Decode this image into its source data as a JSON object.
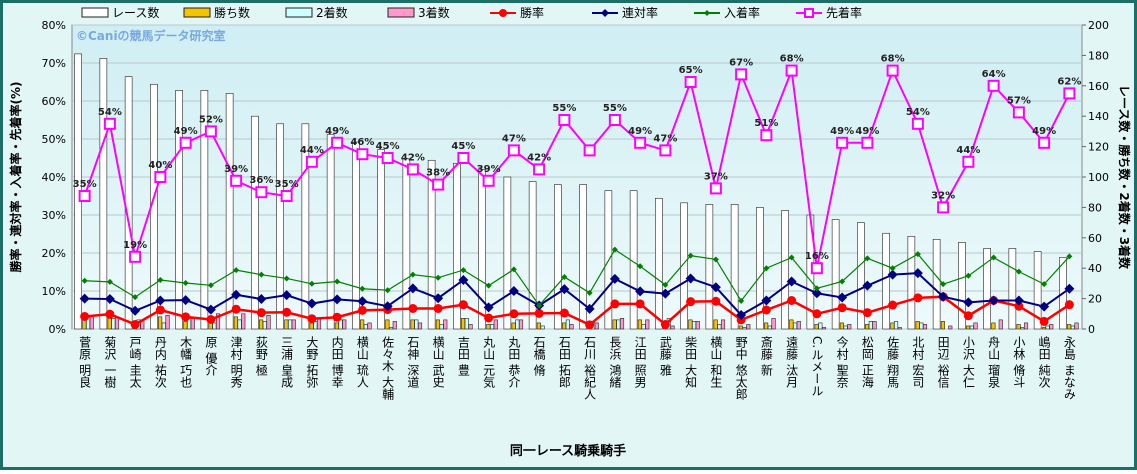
{
  "chart_data": {
    "type": "bar",
    "watermark": "©Caniの競馬データ研究室",
    "xlabel": "同一レース騎乗騎手",
    "ylabel": "勝率・連対率・入着率・先着率(%)",
    "y2label": "レース数・勝ち数・2着数・3着数",
    "grid": true,
    "legend": "top",
    "categories": [
      "菅原 明良",
      "菊沢 一樹",
      "戸崎 圭太",
      "丹内 祐次",
      "木幡 巧也",
      "原 優介",
      "津村 明秀",
      "荻野 極",
      "三浦 皇成",
      "大野 拓弥",
      "内田 博幸",
      "横山 琉人",
      "佐々木 大輔",
      "石神 深道",
      "横山 武史",
      "吉田 豊",
      "丸山 元気",
      "丸田 恭介",
      "石橋 脩",
      "石田 拓郎",
      "石川 裕紀人",
      "長浜 鴻緒",
      "江田 照男",
      "武藤 雅",
      "柴田 大知",
      "横山 和生",
      "野中 悠太郎",
      "斎藤 新",
      "遠藤 汰月",
      "C.ルメール",
      "今村 聖奈",
      "松岡 正海",
      "佐藤 翔馬",
      "北村 宏司",
      "田辺 裕信",
      "小沢 大仁",
      "舟山 瑠泉",
      "小林 脩斗",
      "嶋田 純次",
      "永島 まなみ"
    ],
    "ylim": [
      0,
      80
    ],
    "yticks": [
      {
        "value": 0,
        "label": "0%"
      },
      {
        "value": 10,
        "label": "10%"
      },
      {
        "value": 20,
        "label": "20%"
      },
      {
        "value": 30,
        "label": "30%"
      },
      {
        "value": 40,
        "label": "40%"
      },
      {
        "value": 50,
        "label": "50%"
      },
      {
        "value": 60,
        "label": "60%"
      },
      {
        "value": 70,
        "label": "70%"
      },
      {
        "value": 80,
        "label": "80%"
      }
    ],
    "y2lim": [
      0,
      200
    ],
    "y2ticks": [
      0,
      20,
      40,
      60,
      80,
      100,
      120,
      140,
      160,
      180,
      200
    ],
    "series": [
      {
        "name": "レース数",
        "type": "bar",
        "axis": "y2",
        "color": "#ffffff",
        "values": [
          181,
          178,
          166,
          161,
          157,
          157,
          155,
          140,
          135,
          135,
          128,
          123,
          118,
          112,
          111,
          109,
          105,
          100,
          97,
          95,
          95,
          91,
          91,
          86,
          83,
          82,
          82,
          80,
          78,
          75,
          72,
          70,
          63,
          61,
          59,
          57,
          53,
          53,
          51,
          47
        ]
      },
      {
        "name": "勝ち数",
        "type": "bar",
        "axis": "y2",
        "color": "#f5c400",
        "values": [
          6,
          7,
          2,
          8,
          5,
          4,
          8,
          6,
          6,
          4,
          4,
          6,
          6,
          6,
          6,
          7,
          3,
          4,
          4,
          4,
          1,
          6,
          6,
          1,
          6,
          6,
          2,
          4,
          6,
          3,
          4,
          3,
          4,
          5,
          5,
          2,
          4,
          3,
          1,
          3
        ]
      },
      {
        "name": "2着数",
        "type": "bar",
        "axis": "y2",
        "color": "#ccffff",
        "values": [
          8,
          7,
          6,
          4,
          7,
          4,
          6,
          5,
          6,
          5,
          6,
          3,
          1,
          6,
          3,
          7,
          3,
          6,
          2,
          6,
          4,
          6,
          3,
          7,
          5,
          3,
          1,
          2,
          4,
          4,
          2,
          5,
          5,
          4,
          0,
          2,
          0,
          1,
          2,
          2
        ]
      },
      {
        "name": "3着数",
        "type": "bar",
        "axis": "y2",
        "color": "#ff99cc",
        "values": [
          9,
          8,
          6,
          9,
          7,
          10,
          10,
          9,
          6,
          7,
          6,
          4,
          5,
          4,
          6,
          3,
          6,
          6,
          0,
          3,
          4,
          7,
          6,
          2,
          5,
          6,
          3,
          7,
          5,
          1,
          3,
          5,
          1,
          3,
          2,
          4,
          6,
          4,
          3,
          4
        ]
      },
      {
        "name": "勝率",
        "type": "line",
        "marker": "circle",
        "color": "#ff0000",
        "values": [
          3.3,
          3.9,
          1.2,
          5.0,
          3.2,
          2.5,
          5.2,
          4.3,
          4.4,
          2.7,
          3.1,
          4.9,
          5.1,
          5.4,
          5.4,
          6.4,
          2.9,
          4.0,
          4.1,
          4.2,
          1.1,
          6.6,
          6.6,
          1.2,
          7.2,
          7.3,
          2.4,
          5.0,
          7.5,
          4.0,
          5.6,
          4.3,
          6.3,
          8.2,
          8.5,
          3.5,
          7.5,
          6.0,
          2.0,
          6.4
        ]
      },
      {
        "name": "連対率",
        "type": "line",
        "marker": "diamond",
        "color": "#000080",
        "values": [
          8.0,
          7.9,
          4.8,
          7.5,
          7.6,
          5.1,
          9.0,
          7.9,
          8.9,
          6.7,
          7.8,
          7.3,
          6.0,
          10.7,
          8.1,
          12.9,
          5.7,
          10.0,
          6.2,
          10.5,
          5.3,
          13.2,
          9.9,
          9.3,
          13.3,
          11.0,
          3.7,
          7.5,
          12.5,
          9.4,
          8.3,
          11.4,
          14.3,
          14.7,
          8.5,
          7.0,
          7.5,
          7.5,
          5.9,
          10.6
        ]
      },
      {
        "name": "入着率",
        "type": "line",
        "marker": "small-diamond",
        "color": "#008000",
        "values": [
          12.7,
          12.4,
          8.4,
          12.9,
          12.1,
          11.5,
          15.5,
          14.3,
          13.3,
          11.9,
          12.5,
          10.6,
          10.2,
          14.3,
          13.5,
          15.5,
          11.4,
          15.7,
          6.2,
          13.7,
          9.5,
          20.9,
          16.5,
          11.6,
          19.3,
          18.3,
          7.4,
          16.0,
          18.8,
          10.7,
          12.5,
          18.6,
          16.0,
          19.7,
          11.8,
          14.0,
          18.8,
          15.1,
          11.8,
          19.1
        ]
      },
      {
        "name": "先着率",
        "type": "line",
        "marker": "square",
        "color": "#ff00ff",
        "values": [
          35,
          54,
          19,
          40,
          49,
          52,
          39,
          36,
          35,
          44,
          49,
          46,
          45,
          42,
          38,
          45,
          39,
          47,
          42,
          55,
          47,
          55,
          49,
          47,
          65,
          37,
          67,
          51,
          68,
          16,
          49,
          49,
          68,
          54,
          32,
          44,
          64,
          57,
          49,
          62
        ],
        "value_labels": [
          "35%",
          "54%",
          "19%",
          "40%",
          "49%",
          "52%",
          "39%",
          "36%",
          "35%",
          "44%",
          "49%",
          "46%",
          "45%",
          "42%",
          "38%",
          "45%",
          "39%",
          "47%",
          "42%",
          "55%",
          null,
          "55%",
          "49%",
          "47%",
          "65%",
          "37%",
          "67%",
          "51%",
          "68%",
          "16%",
          "49%",
          "49%",
          "68%",
          "54%",
          "32%",
          "44%",
          "64%",
          "57%",
          "49%",
          "62%"
        ]
      }
    ]
  }
}
